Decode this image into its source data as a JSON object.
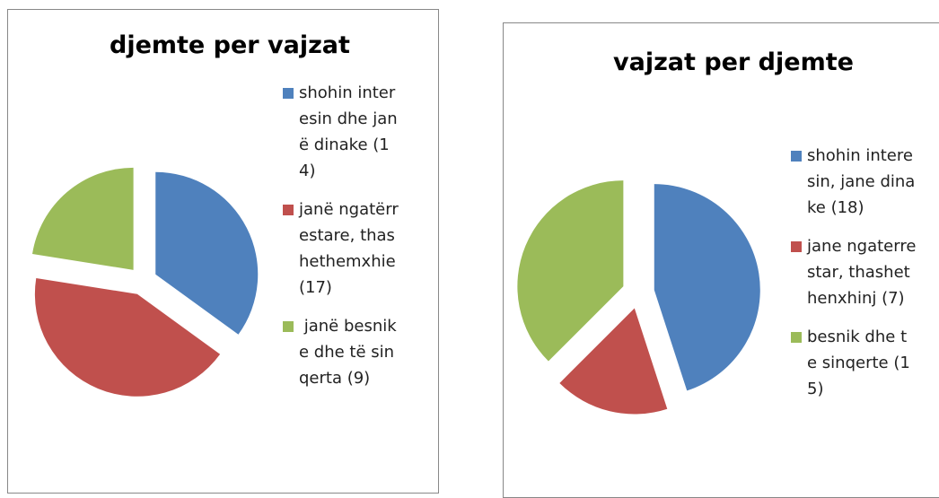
{
  "chart_data": [
    {
      "type": "pie",
      "title": "djemte per vajzat",
      "categories": [
        "shohin interesin dhe janë dinake (14)",
        "janë ngatërrestare, thashethemxhie (17)",
        " janë besnike dhe të sinqerta (9)"
      ],
      "values": [
        14,
        17,
        9
      ],
      "colors": [
        "#4f81bd",
        "#c0504d",
        "#9bbb59"
      ],
      "legend": "right"
    },
    {
      "type": "pie",
      "title": "vajzat per djemte",
      "categories": [
        "shohin interesin, jane dinake (18)",
        "jane ngaterrestar, thashethenxhinj (7)",
        "besnik dhe te sinqerte (15)"
      ],
      "values": [
        18,
        7,
        15
      ],
      "colors": [
        "#4f81bd",
        "#c0504d",
        "#9bbb59"
      ],
      "legend": "right"
    }
  ]
}
